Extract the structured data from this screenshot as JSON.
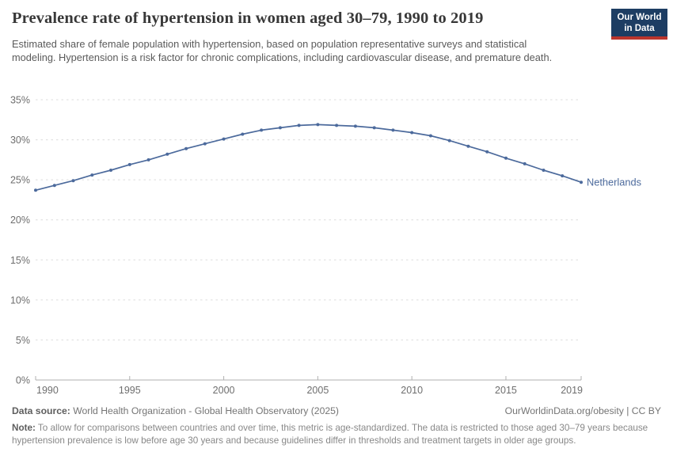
{
  "header": {
    "title": "Prevalence rate of hypertension in women aged 30–79, 1990 to 2019",
    "subtitle": "Estimated share of female population with hypertension, based on population representative surveys and statistical modeling. Hypertension is a risk factor for chronic complications, including cardiovascular disease, and premature death.",
    "logo": {
      "line1": "Our World",
      "line2": "in Data",
      "bg_color": "#1d3d63",
      "accent_color": "#bb352d"
    }
  },
  "chart_data": {
    "type": "line",
    "title": "Prevalence rate of hypertension in women aged 30–79, 1990 to 2019",
    "xlabel": "",
    "ylabel": "",
    "xlim": [
      1990,
      2019
    ],
    "ylim": [
      0,
      35
    ],
    "x_ticks": [
      1990,
      1995,
      2000,
      2005,
      2010,
      2015,
      2019
    ],
    "y_ticks": [
      0,
      5,
      10,
      15,
      20,
      25,
      30,
      35
    ],
    "y_tick_suffix": "%",
    "grid": "dashed-horizontal",
    "legend_position": "end-of-line-label",
    "series": [
      {
        "name": "Netherlands",
        "color": "#4c6a9c",
        "x": [
          1990,
          1991,
          1992,
          1993,
          1994,
          1995,
          1996,
          1997,
          1998,
          1999,
          2000,
          2001,
          2002,
          2003,
          2004,
          2005,
          2006,
          2007,
          2008,
          2009,
          2010,
          2011,
          2012,
          2013,
          2014,
          2015,
          2016,
          2017,
          2018,
          2019
        ],
        "values": [
          23.7,
          24.3,
          24.9,
          25.6,
          26.2,
          26.9,
          27.5,
          28.2,
          28.9,
          29.5,
          30.1,
          30.7,
          31.2,
          31.5,
          31.8,
          31.9,
          31.8,
          31.7,
          31.5,
          31.2,
          30.9,
          30.5,
          29.9,
          29.2,
          28.5,
          27.7,
          27.0,
          26.2,
          25.5,
          24.7
        ]
      }
    ],
    "colors": {
      "gridline": "#dcdcdc",
      "axis": "#b0b0b0",
      "tick_label": "#6e6e6e"
    }
  },
  "footer": {
    "datasource_label": "Data source:",
    "datasource_text": " World Health Organization - Global Health Observatory (2025)",
    "attribution": "OurWorldinData.org/obesity | CC BY",
    "note_label": "Note:",
    "note_text": " To allow for comparisons between countries and over time, this metric is age-standardized. The data is restricted to those aged 30–79 years because hypertension prevalence is low before age 30 years and because guidelines differ in thresholds and treatment targets in older age groups."
  }
}
